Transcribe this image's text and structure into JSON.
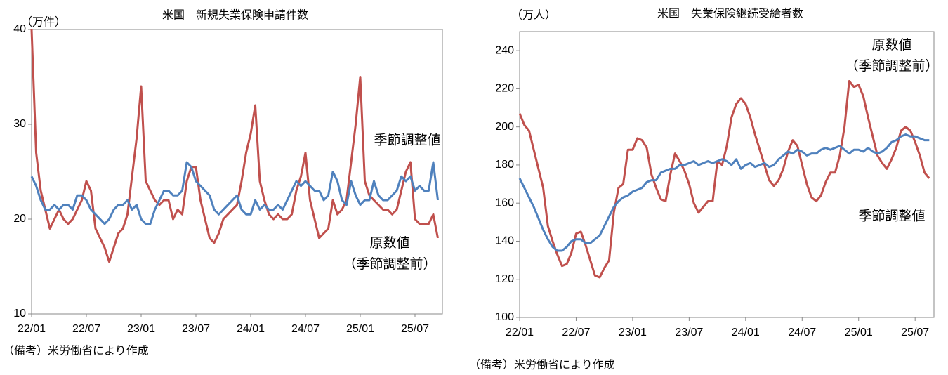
{
  "chart_data": [
    {
      "type": "line",
      "title": "米国　新規失業保険申請件数",
      "y_unit": "（万件）",
      "note": "（備考）米労働省により作成",
      "ylim": [
        10,
        40
      ],
      "yticks": [
        10,
        20,
        30,
        40
      ],
      "categories": [
        "22/01",
        null,
        null,
        null,
        null,
        null,
        null,
        null,
        null,
        null,
        null,
        null,
        "22/07",
        null,
        null,
        null,
        null,
        null,
        null,
        null,
        null,
        null,
        null,
        null,
        "23/01",
        null,
        null,
        null,
        null,
        null,
        null,
        null,
        null,
        null,
        null,
        null,
        "23/07",
        null,
        null,
        null,
        null,
        null,
        null,
        null,
        null,
        null,
        null,
        null,
        "24/01",
        null,
        null,
        null,
        null,
        null,
        null,
        null,
        null,
        null,
        null,
        null,
        "24/07",
        null,
        null,
        null,
        null,
        null,
        null,
        null,
        null,
        null,
        null,
        null,
        "25/01",
        null,
        null,
        null,
        null,
        null,
        null,
        null,
        null,
        null,
        null,
        null,
        "25/07",
        null,
        null,
        null,
        null,
        null
      ],
      "series": [
        {
          "name": "季節調整値",
          "color": "#4f81bd",
          "values": [
            24.5,
            23.5,
            22,
            21,
            21,
            21.5,
            21,
            21.5,
            21.5,
            21,
            22.5,
            22.5,
            22,
            21,
            20.5,
            20,
            19.5,
            20,
            21,
            21.5,
            21.5,
            22,
            21,
            21.5,
            20,
            19.5,
            19.5,
            21,
            22,
            23,
            23,
            22.5,
            22.5,
            23,
            26,
            25.5,
            24,
            23.5,
            23,
            22.5,
            21,
            20.5,
            21,
            21.5,
            22,
            22.5,
            21,
            20.5,
            20.5,
            22,
            21,
            21.5,
            21,
            21,
            21.5,
            21,
            22,
            23,
            24,
            23.5,
            24,
            23.5,
            23,
            23,
            22,
            22.5,
            25,
            24,
            22,
            21.5,
            24,
            22.5,
            21.5,
            22,
            22,
            24,
            22.5,
            22,
            22,
            22.5,
            23,
            24.5,
            24,
            24.5,
            23,
            23.5,
            23,
            23,
            26,
            22
          ]
        },
        {
          "name": "原数値（季節調整前）",
          "color": "#c0504d",
          "values": [
            40,
            27,
            23,
            21,
            19,
            20,
            21,
            20,
            19.5,
            20,
            21,
            22,
            24,
            23,
            19,
            18,
            17,
            15.5,
            17,
            18.5,
            19,
            20.5,
            24.5,
            28.5,
            34,
            24,
            23,
            22,
            21.5,
            22,
            22,
            20,
            21,
            20.5,
            24,
            25.5,
            25.5,
            22,
            20,
            18,
            17.5,
            18.5,
            20,
            20.5,
            21,
            21.5,
            24,
            27,
            29,
            32,
            24,
            22,
            20.5,
            20,
            20.5,
            20,
            20,
            20.5,
            23,
            24.5,
            27,
            22,
            20,
            18,
            18.5,
            19,
            22,
            20.5,
            21,
            22,
            26,
            30,
            35,
            24,
            22.5,
            22,
            21.5,
            21,
            21,
            20.5,
            21,
            23,
            25,
            26,
            20,
            19.5,
            19.5,
            19.5,
            20.5,
            18
          ]
        }
      ],
      "annotations": [
        "季節調整値",
        "原数値（季節調整前）"
      ]
    },
    {
      "type": "line",
      "title": "米国　失業保険継続受給者数",
      "y_unit": "（万人）",
      "note": "（備考）米労働省により作成",
      "ylim": [
        100,
        250
      ],
      "yticks": [
        100,
        120,
        140,
        160,
        180,
        200,
        220,
        240
      ],
      "categories": [
        "22/01",
        null,
        null,
        null,
        null,
        null,
        null,
        null,
        null,
        null,
        null,
        null,
        "22/07",
        null,
        null,
        null,
        null,
        null,
        null,
        null,
        null,
        null,
        null,
        null,
        "23/01",
        null,
        null,
        null,
        null,
        null,
        null,
        null,
        null,
        null,
        null,
        null,
        "23/07",
        null,
        null,
        null,
        null,
        null,
        null,
        null,
        null,
        null,
        null,
        null,
        "24/01",
        null,
        null,
        null,
        null,
        null,
        null,
        null,
        null,
        null,
        null,
        null,
        "24/07",
        null,
        null,
        null,
        null,
        null,
        null,
        null,
        null,
        null,
        null,
        null,
        "25/01",
        null,
        null,
        null,
        null,
        null,
        null,
        null,
        null,
        null,
        null,
        null,
        "25/07",
        null,
        null,
        null
      ],
      "series": [
        {
          "name": "季節調整値",
          "color": "#4f81bd",
          "values": [
            173,
            168,
            163,
            158,
            152,
            146,
            141,
            137,
            135,
            135,
            137,
            140,
            141,
            141,
            139,
            139,
            141,
            143,
            148,
            153,
            158,
            161,
            163,
            164,
            166,
            167,
            168,
            171,
            172,
            172,
            176,
            177,
            178,
            178,
            180,
            180,
            181,
            182,
            180,
            181,
            182,
            181,
            182,
            183,
            182,
            180,
            183,
            178,
            180,
            181,
            179,
            180,
            181,
            179,
            180,
            183,
            185,
            187,
            186,
            188,
            187,
            185,
            186,
            186,
            188,
            189,
            188,
            189,
            190,
            188,
            186,
            188,
            188,
            187,
            189,
            187,
            186,
            187,
            189,
            192,
            193,
            195,
            196,
            195,
            195,
            194,
            193,
            193
          ]
        },
        {
          "name": "原数値（季節調整前）",
          "color": "#c0504d",
          "values": [
            207,
            201,
            198,
            188,
            178,
            168,
            148,
            140,
            133,
            127,
            128,
            134,
            144,
            145,
            138,
            130,
            122,
            121,
            126,
            130,
            155,
            168,
            170,
            188,
            188,
            194,
            193,
            189,
            175,
            168,
            162,
            161,
            175,
            186,
            182,
            177,
            170,
            160,
            155,
            158,
            161,
            161,
            182,
            180,
            190,
            205,
            212,
            215,
            212,
            205,
            196,
            188,
            180,
            172,
            169,
            172,
            178,
            187,
            193,
            190,
            180,
            170,
            163,
            161,
            164,
            171,
            176,
            176,
            185,
            200,
            224,
            221,
            222,
            216,
            205,
            195,
            185,
            181,
            178,
            183,
            189,
            198,
            200,
            198,
            192,
            185,
            176,
            173
          ]
        }
      ],
      "annotations": [
        "季節調整値",
        "原数値（季節調整前）"
      ]
    }
  ]
}
